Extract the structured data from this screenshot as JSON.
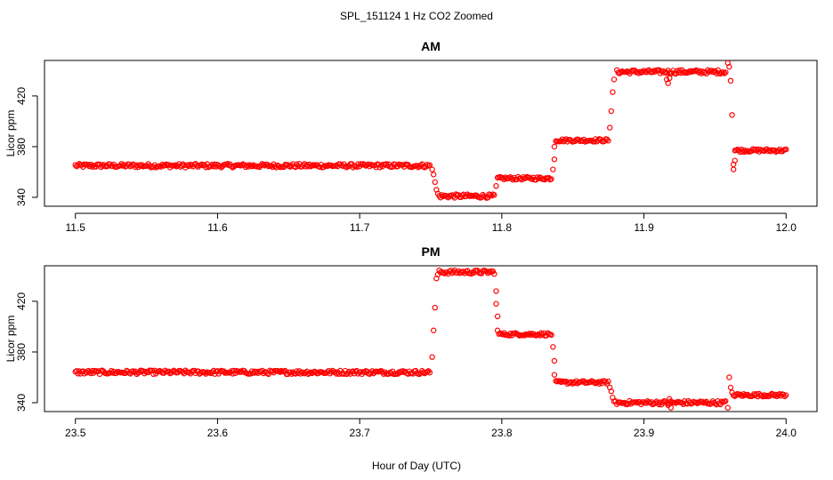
{
  "title": "SPL_151124  1 Hz CO2 Zoomed",
  "xlabel": "Hour of Day (UTC)",
  "colors": {
    "points": "#ff0000",
    "frame": "#000000",
    "background": "#ffffff"
  },
  "chart_data": [
    {
      "type": "scatter",
      "title": "AM",
      "ylabel": "Licor ppm",
      "xlim": [
        11.5,
        12.0
      ],
      "ylim": [
        333,
        448
      ],
      "x_ticks": [
        11.5,
        11.6,
        11.7,
        11.8,
        11.9,
        12.0
      ],
      "x_tick_labels": [
        "11.5",
        "11.6",
        "11.7",
        "11.8",
        "11.9",
        "12.0"
      ],
      "y_ticks": [
        340,
        380,
        420
      ],
      "y_tick_labels": [
        "340",
        "380",
        "420"
      ],
      "grid": false,
      "segments": [
        {
          "x_start": 11.5,
          "x_end": 11.75,
          "y": 365,
          "noise": 1.5
        },
        {
          "x_start": 11.756,
          "x_end": 11.795,
          "y": 341,
          "noise": 1.5
        },
        {
          "x_start": 11.797,
          "x_end": 11.835,
          "y": 355,
          "noise": 1.2
        },
        {
          "x_start": 11.838,
          "x_end": 11.875,
          "y": 385,
          "noise": 1.2
        },
        {
          "x_start": 11.881,
          "x_end": 11.958,
          "y": 439,
          "noise": 1.5
        },
        {
          "x_start": 11.964,
          "x_end": 12.0,
          "y": 377,
          "noise": 1.2
        }
      ],
      "transitions": [
        {
          "x": [
            11.751,
            11.752,
            11.753,
            11.754,
            11.755
          ],
          "y": [
            362,
            358,
            352,
            346,
            343
          ]
        },
        {
          "x": [
            11.796
          ],
          "y": [
            349
          ]
        },
        {
          "x": [
            11.836,
            11.837,
            11.837
          ],
          "y": [
            362,
            370,
            380
          ]
        },
        {
          "x": [
            11.876,
            11.877,
            11.878,
            11.879
          ],
          "y": [
            395,
            408,
            423,
            433
          ]
        },
        {
          "x": [
            11.916,
            11.917,
            11.918
          ],
          "y": [
            433,
            430,
            434
          ]
        },
        {
          "x": [
            11.959,
            11.96,
            11.961,
            11.962,
            11.963,
            11.963,
            11.964
          ],
          "y": [
            446,
            443,
            432,
            405,
            366,
            362,
            369
          ]
        }
      ]
    },
    {
      "type": "scatter",
      "title": "PM",
      "ylabel": "Licor ppm",
      "xlim": [
        23.5,
        24.0
      ],
      "ylim": [
        333,
        448
      ],
      "x_ticks": [
        23.5,
        23.6,
        23.7,
        23.8,
        23.9,
        24.0
      ],
      "x_tick_labels": [
        "23.5",
        "23.6",
        "23.7",
        "23.8",
        "23.9",
        "24.0"
      ],
      "y_ticks": [
        340,
        380,
        420
      ],
      "y_tick_labels": [
        "340",
        "380",
        "420"
      ],
      "grid": false,
      "segments": [
        {
          "x_start": 23.5,
          "x_end": 23.75,
          "y": 364,
          "noise": 1.5
        },
        {
          "x_start": 23.756,
          "x_end": 23.795,
          "y": 443,
          "noise": 1.5
        },
        {
          "x_start": 23.798,
          "x_end": 23.835,
          "y": 394,
          "noise": 1.2
        },
        {
          "x_start": 23.838,
          "x_end": 23.875,
          "y": 356,
          "noise": 1.2
        },
        {
          "x_start": 23.88,
          "x_end": 23.958,
          "y": 340,
          "noise": 1.5
        },
        {
          "x_start": 23.963,
          "x_end": 24.0,
          "y": 346,
          "noise": 1.2
        }
      ],
      "transitions": [
        {
          "x": [
            23.751,
            23.752,
            23.753,
            23.754,
            23.755
          ],
          "y": [
            376,
            397,
            415,
            438,
            441
          ]
        },
        {
          "x": [
            23.796,
            23.796,
            23.797,
            23.797
          ],
          "y": [
            428,
            418,
            408,
            397
          ]
        },
        {
          "x": [
            23.836,
            23.837,
            23.837
          ],
          "y": [
            384,
            373,
            362
          ]
        },
        {
          "x": [
            23.876,
            23.877,
            23.878,
            23.879
          ],
          "y": [
            352,
            349,
            344,
            341
          ]
        },
        {
          "x": [
            23.917,
            23.918,
            23.919
          ],
          "y": [
            338,
            343,
            336
          ]
        },
        {
          "x": [
            23.959,
            23.96,
            23.961,
            23.962
          ],
          "y": [
            336,
            360,
            352,
            348
          ]
        }
      ]
    }
  ]
}
